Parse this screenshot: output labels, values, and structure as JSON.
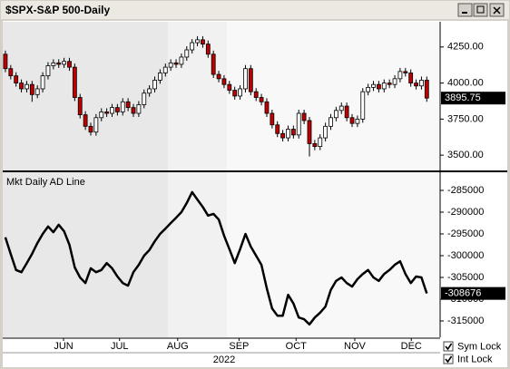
{
  "window": {
    "title": "$SPX-S&P 500-Daily"
  },
  "checkboxes": [
    {
      "label": "Sym Lock",
      "checked": true
    },
    {
      "label": "Int Lock",
      "checked": true
    }
  ],
  "chart_data": [
    {
      "type": "candlestick",
      "xlim": [
        -0.5,
        81.5
      ],
      "ylim": [
        3394,
        4425
      ],
      "yticks": [
        {
          "value": 4250,
          "label": "4250.00"
        },
        {
          "value": 4000,
          "label": "4000.00"
        },
        {
          "value": 3750,
          "label": "3750.00"
        },
        {
          "value": 3500,
          "label": "3500.00"
        }
      ],
      "up_color": "#ffffff",
      "down_color": "#c00000",
      "open": [
        4200,
        4100,
        4050,
        4000,
        3960,
        3990,
        3920,
        3960,
        4050,
        4120,
        4140,
        4130,
        4150,
        4110,
        3900,
        3780,
        3700,
        3660,
        3760,
        3800,
        3790,
        3830,
        3800,
        3870,
        3830,
        3790,
        3850,
        3930,
        3960,
        4020,
        4070,
        4110,
        4140,
        4130,
        4180,
        4230,
        4280,
        4300,
        4270,
        4200,
        4060,
        4030,
        3990,
        3950,
        3910,
        3960,
        4100,
        3940,
        3900,
        3870,
        3790,
        3710,
        3650,
        3620,
        3680,
        3640,
        3790,
        3740,
        3580,
        3560,
        3620,
        3700,
        3760,
        3810,
        3840,
        3760,
        3720,
        3750,
        3940,
        3970,
        3990,
        3960,
        4000,
        3990,
        4030,
        4080,
        4070,
        4000,
        3980,
        4020
      ],
      "high": [
        4225,
        4125,
        4075,
        4025,
        4015,
        4015,
        3985,
        4075,
        4145,
        4165,
        4165,
        4175,
        4175,
        4135,
        3925,
        3805,
        3725,
        3785,
        3825,
        3825,
        3855,
        3855,
        3895,
        3895,
        3855,
        3875,
        3955,
        3985,
        4045,
        4095,
        4135,
        4165,
        4165,
        4205,
        4255,
        4305,
        4325,
        4325,
        4295,
        4225,
        4085,
        4055,
        4015,
        3975,
        3985,
        4125,
        4125,
        3965,
        3925,
        3895,
        3815,
        3735,
        3675,
        3705,
        3705,
        3815,
        3815,
        3765,
        3605,
        3645,
        3725,
        3785,
        3835,
        3865,
        3865,
        3785,
        3775,
        3965,
        3995,
        4015,
        4015,
        4025,
        4025,
        4055,
        4105,
        4105,
        4095,
        4025,
        4045,
        4045
      ],
      "low": [
        4075,
        4025,
        3975,
        3935,
        3935,
        3870,
        3895,
        3935,
        4025,
        4095,
        4105,
        4105,
        4085,
        3875,
        3755,
        3675,
        3636,
        3635,
        3735,
        3765,
        3765,
        3775,
        3775,
        3805,
        3765,
        3765,
        3825,
        3905,
        3935,
        3995,
        4045,
        4085,
        4105,
        4105,
        4155,
        4205,
        4255,
        4245,
        4175,
        4035,
        4005,
        3965,
        3925,
        3885,
        3885,
        3935,
        3915,
        3875,
        3845,
        3765,
        3685,
        3625,
        3595,
        3595,
        3615,
        3615,
        3715,
        3491,
        3535,
        3535,
        3595,
        3675,
        3735,
        3785,
        3735,
        3695,
        3695,
        3725,
        3915,
        3945,
        3935,
        3935,
        3965,
        3965,
        4005,
        4045,
        3975,
        3955,
        3955,
        3870
      ],
      "close": [
        4100,
        4050,
        4000,
        3960,
        3990,
        3920,
        3960,
        4050,
        4120,
        4140,
        4130,
        4150,
        4110,
        3900,
        3780,
        3700,
        3660,
        3760,
        3800,
        3790,
        3830,
        3800,
        3870,
        3830,
        3790,
        3850,
        3930,
        3960,
        4020,
        4070,
        4110,
        4140,
        4130,
        4180,
        4230,
        4280,
        4300,
        4270,
        4200,
        4060,
        4030,
        3990,
        3950,
        3910,
        3960,
        4100,
        3940,
        3900,
        3870,
        3790,
        3710,
        3650,
        3620,
        3680,
        3640,
        3790,
        3740,
        3580,
        3560,
        3620,
        3700,
        3760,
        3810,
        3840,
        3760,
        3720,
        3750,
        3940,
        3970,
        3990,
        3960,
        4000,
        3990,
        4030,
        4080,
        4070,
        4000,
        3980,
        4020,
        3895.75
      ]
    },
    {
      "type": "line",
      "title": "Mkt Daily AD Line",
      "color": "#000000",
      "xlim": [
        -0.5,
        81.5
      ],
      "ylim": [
        -318750,
        -281250
      ],
      "yticks": [
        -285000,
        -290000,
        -295000,
        -300000,
        -305000,
        -310000,
        -315000
      ],
      "xticks": [
        {
          "value": 10.9,
          "label": "JUN"
        },
        {
          "value": 21.4,
          "label": "JUL"
        },
        {
          "value": 32.3,
          "label": "AUG"
        },
        {
          "value": 43.8,
          "label": "SEP"
        },
        {
          "value": 54.5,
          "label": "OCT"
        },
        {
          "value": 65.5,
          "label": "NOV"
        },
        {
          "value": 76.1,
          "label": "DEC"
        }
      ],
      "xlabel": "2022",
      "values": [
        -295800,
        -299600,
        -303300,
        -303800,
        -301700,
        -299600,
        -297100,
        -295000,
        -293300,
        -294600,
        -292900,
        -294400,
        -297500,
        -302700,
        -305000,
        -306300,
        -302900,
        -303800,
        -303300,
        -301700,
        -302900,
        -304800,
        -306300,
        -306900,
        -303800,
        -302100,
        -300000,
        -298700,
        -296700,
        -295000,
        -293800,
        -292500,
        -291300,
        -290000,
        -287900,
        -285400,
        -287100,
        -288800,
        -290800,
        -290400,
        -291700,
        -295400,
        -298500,
        -301700,
        -298500,
        -295000,
        -297900,
        -300000,
        -302100,
        -307500,
        -312100,
        -313800,
        -313800,
        -309000,
        -311000,
        -314200,
        -314600,
        -315800,
        -314200,
        -313100,
        -311700,
        -307900,
        -305800,
        -305000,
        -306300,
        -307100,
        -305400,
        -304200,
        -303300,
        -305000,
        -305800,
        -304200,
        -303300,
        -302100,
        -301300,
        -304200,
        -306300,
        -304800,
        -305000,
        -308676
      ]
    }
  ]
}
